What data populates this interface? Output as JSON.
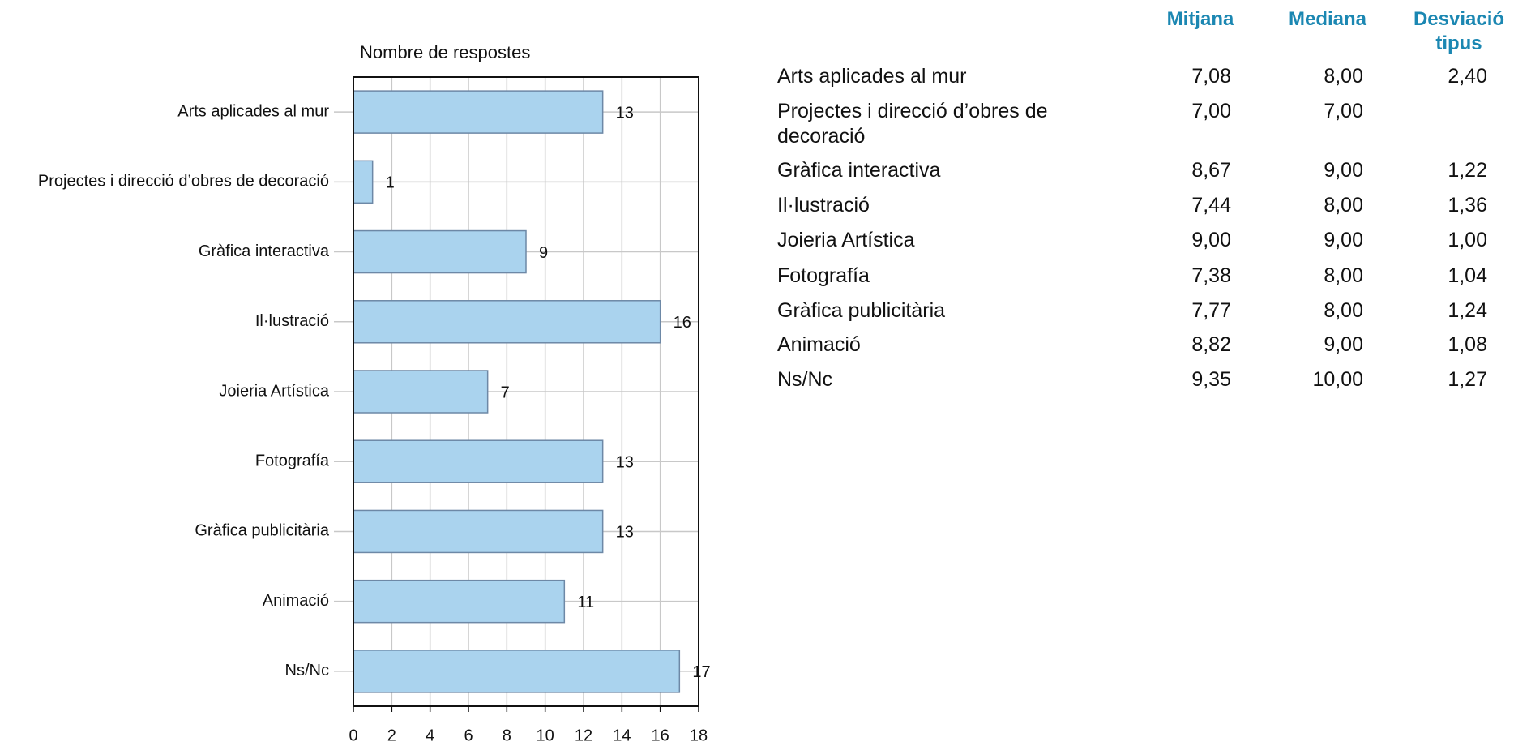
{
  "chart_data": {
    "type": "barh",
    "title": "Nombre de respostes",
    "categories": [
      "Arts aplicades al mur",
      "Projectes i direcció d’obres de decoració",
      "Gràfica interactiva",
      "Il·lustració",
      "Joieria Artística",
      "Fotografía",
      "Gràfica publicitària",
      "Animació",
      "Ns/Nc"
    ],
    "values": [
      13,
      1,
      9,
      16,
      7,
      13,
      13,
      11,
      17
    ],
    "color": "#aad3ee",
    "edge_color": "#6d88a6",
    "xlim": [
      0,
      18
    ],
    "xticks": [
      0,
      2,
      4,
      6,
      8,
      10,
      12,
      14,
      16,
      18
    ],
    "grid": true
  },
  "table": {
    "columns": [
      "Mitjana",
      "Mediana",
      "Desviació tipus"
    ],
    "rows": [
      {
        "label": "Arts aplicades al mur",
        "values": [
          "7,08",
          "8,00",
          "2,40"
        ]
      },
      {
        "label": "Projectes i direcció d’obres de decoració",
        "values": [
          "7,00",
          "7,00",
          null
        ]
      },
      {
        "label": "Gràfica interactiva",
        "values": [
          "8,67",
          "9,00",
          "1,22"
        ]
      },
      {
        "label": "Il·lustració",
        "values": [
          "7,44",
          "8,00",
          "1,36"
        ]
      },
      {
        "label": "Joieria Artística",
        "values": [
          "9,00",
          "9,00",
          "1,00"
        ]
      },
      {
        "label": "Fotografía",
        "values": [
          "7,38",
          "8,00",
          "1,04"
        ]
      },
      {
        "label": "Gràfica publicitària",
        "values": [
          "7,77",
          "8,00",
          "1,24"
        ]
      },
      {
        "label": "Animació",
        "values": [
          "8,82",
          "9,00",
          "1,08"
        ]
      },
      {
        "label": "Ns/Nc",
        "values": [
          "9,35",
          "10,00",
          "1,27"
        ]
      }
    ]
  }
}
